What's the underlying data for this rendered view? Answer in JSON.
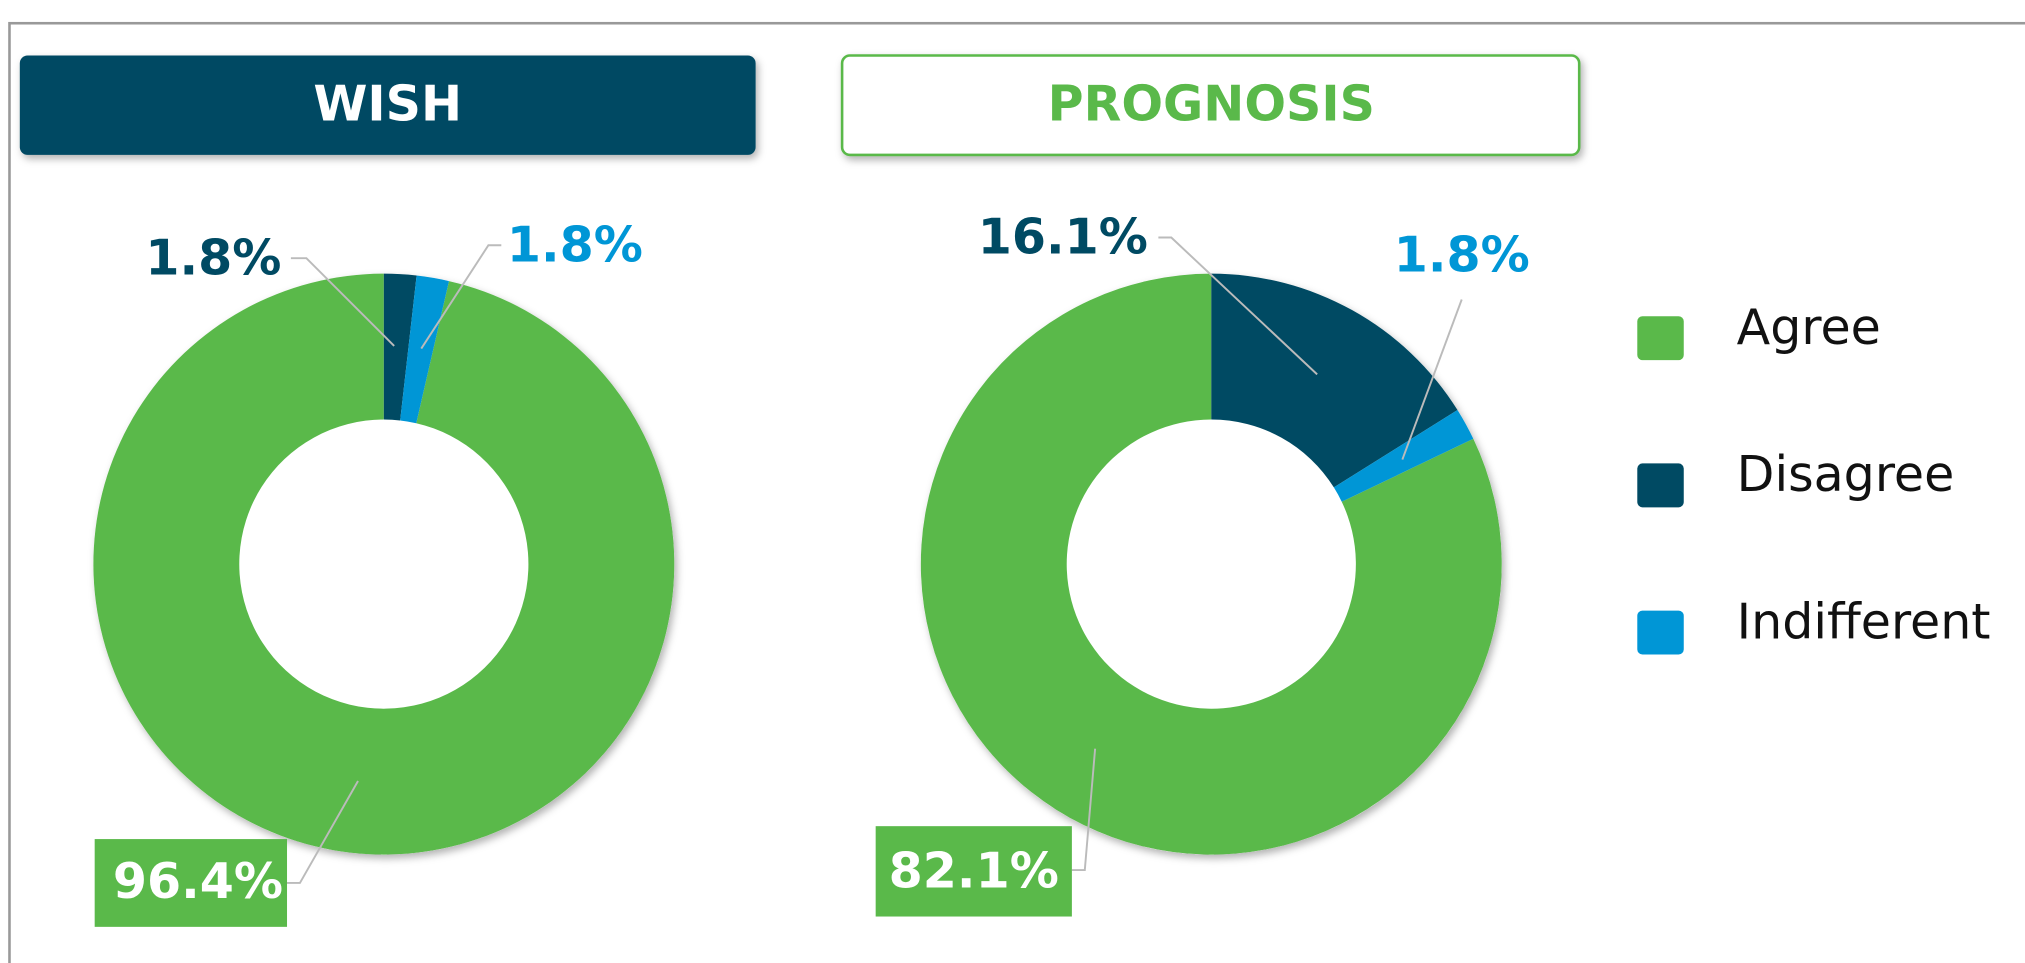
{
  "chart_data": [
    {
      "type": "donut",
      "title": "WISH",
      "categories": [
        "Agree",
        "Disagree",
        "Indifferent"
      ],
      "values": [
        96.4,
        1.8,
        1.8
      ],
      "value_labels": [
        "96.4%",
        "1.8%",
        "1.8%"
      ],
      "colors": [
        "#5ab94a",
        "#004a63",
        "#0096d6"
      ]
    },
    {
      "type": "donut",
      "title": "PROGNOSIS",
      "categories": [
        "Agree",
        "Disagree",
        "Indifferent"
      ],
      "values": [
        82.1,
        16.1,
        1.8
      ],
      "value_labels": [
        "82.1%",
        "16.1%",
        "1.8%"
      ],
      "colors": [
        "#5ab94a",
        "#004a63",
        "#0096d6"
      ]
    }
  ]
}
